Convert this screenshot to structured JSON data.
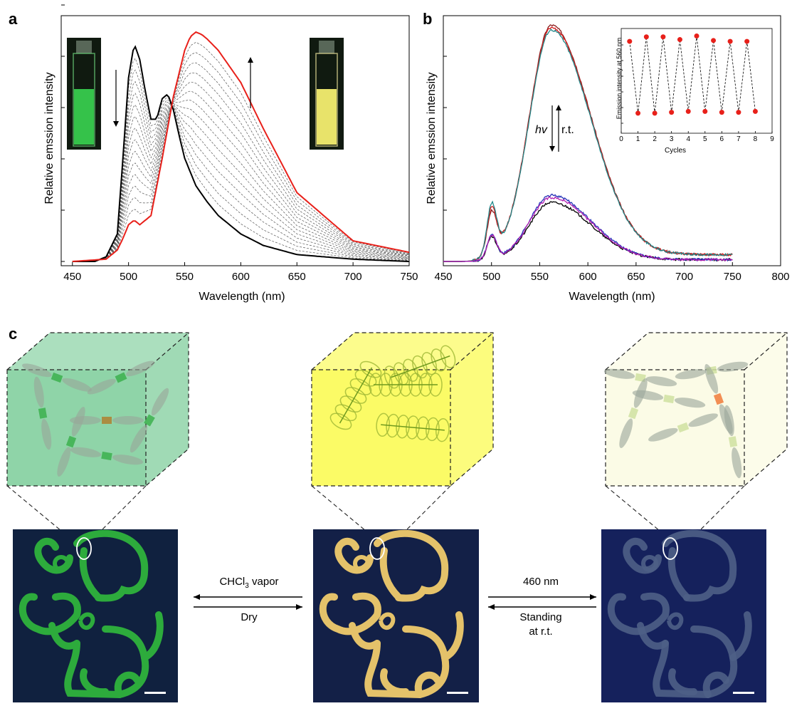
{
  "panels": {
    "a": "a",
    "b": "b",
    "c": "c"
  },
  "chart_data": [
    {
      "panel": "a",
      "type": "line",
      "xlabel": "Wavelength (nm)",
      "ylabel": "Relative emssion intensity",
      "xlim": [
        440,
        750
      ],
      "xticks": [
        "450",
        "500",
        "550",
        "600",
        "650",
        "700",
        "750"
      ],
      "yticks_unlabeled": 6,
      "grid": false,
      "series": [
        {
          "color": "#000000",
          "style": "solid",
          "x": [
            450,
            470,
            480,
            490,
            495,
            500,
            505,
            510,
            515,
            520,
            525,
            530,
            535,
            540,
            545,
            550,
            560,
            570,
            580,
            600,
            620,
            650,
            700,
            750
          ],
          "y": [
            0.0,
            0.0,
            0.02,
            0.12,
            0.45,
            0.8,
            0.95,
            0.88,
            0.74,
            0.62,
            0.62,
            0.71,
            0.73,
            0.66,
            0.55,
            0.45,
            0.33,
            0.26,
            0.2,
            0.12,
            0.07,
            0.03,
            0.01,
            0.0
          ]
        },
        {
          "color": "#e8201a",
          "style": "solid",
          "x": [
            450,
            480,
            490,
            495,
            500,
            505,
            510,
            520,
            530,
            540,
            550,
            555,
            560,
            565,
            570,
            580,
            600,
            620,
            650,
            700,
            750
          ],
          "y": [
            0.0,
            0.01,
            0.05,
            0.1,
            0.16,
            0.18,
            0.16,
            0.2,
            0.45,
            0.72,
            0.92,
            0.98,
            1.0,
            0.99,
            0.97,
            0.92,
            0.78,
            0.58,
            0.3,
            0.09,
            0.04
          ]
        }
      ],
      "intermediate_curves": 14,
      "arrows": [
        "down-left",
        "up-right"
      ],
      "insets": [
        "green-cuvette",
        "yellow-cuvette"
      ]
    },
    {
      "panel": "b",
      "type": "line",
      "xlabel": "Wavelength (nm)",
      "ylabel": "Relative emssion intensity",
      "xlim": [
        450,
        800
      ],
      "xticks": [
        "450",
        "500",
        "550",
        "600",
        "650",
        "700",
        "750",
        "800"
      ],
      "yticks_unlabeled": 5,
      "annotations": {
        "left": "hv",
        "right": "r.t."
      },
      "series": [
        {
          "color": "#8b1a1a",
          "group": "high",
          "peak": 1.0,
          "shoulder": 0.2
        },
        {
          "color": "#d42020",
          "group": "high",
          "peak": 0.99,
          "shoulder": 0.22
        },
        {
          "color": "#20888a",
          "group": "high",
          "peak": 0.98,
          "shoulder": 0.24
        },
        {
          "color": "#000000",
          "group": "low",
          "peak": 0.25,
          "shoulder": 0.11
        },
        {
          "color": "#2633b8",
          "group": "low",
          "peak": 0.28,
          "shoulder": 0.12
        },
        {
          "color": "#b01fb0",
          "group": "low",
          "peak": 0.27,
          "shoulder": 0.12
        }
      ],
      "inset": {
        "type": "scatter",
        "xlabel": "Cycles",
        "ylabel": "Emission intensity at 560 nm",
        "xticks": [
          "0",
          "1",
          "2",
          "3",
          "4",
          "5",
          "6",
          "7",
          "8",
          "9"
        ],
        "xlim": [
          0,
          9
        ],
        "ylim": [
          0,
          1
        ],
        "x": [
          0.5,
          1,
          1.5,
          2,
          2.5,
          3,
          3.5,
          4,
          4.5,
          5,
          5.5,
          6,
          6.5,
          7,
          7.5,
          8
        ],
        "y": [
          0.92,
          0.12,
          0.97,
          0.12,
          0.97,
          0.13,
          0.94,
          0.14,
          0.98,
          0.14,
          0.93,
          0.13,
          0.92,
          0.13,
          0.92,
          0.14
        ]
      }
    }
  ],
  "panel_c": {
    "arrow_left_top": "CHCl",
    "arrow_left_sub": "3",
    "arrow_left_top_suffix": " vapor",
    "arrow_left_bottom": "Dry",
    "arrow_right_top": "460 nm",
    "arrow_right_bottom_line1": "Standing",
    "arrow_right_bottom_line2": "at r.t.",
    "cube_colors": [
      "#8fd4a8",
      "#fbfb66",
      "#fbfbe6"
    ],
    "dog_colors": [
      "#2dab3c",
      "#e4c26a",
      "#4e5f86"
    ],
    "photo_bg": [
      "#12233f",
      "#122045",
      "#12205a"
    ]
  }
}
